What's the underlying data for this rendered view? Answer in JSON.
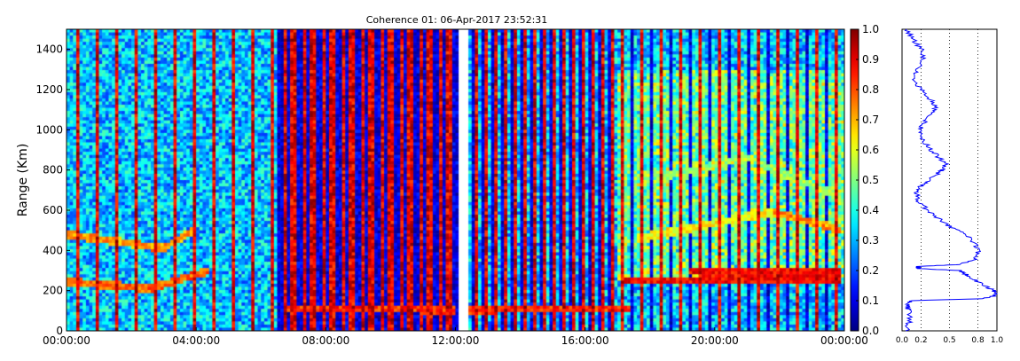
{
  "title": "Coherence 01: 06-Apr-2017 23:52:31",
  "chart_data": [
    {
      "type": "heatmap",
      "title": "Coherence 01: 06-Apr-2017 23:52:31",
      "xlabel": "",
      "ylabel": "Range (Km)",
      "x_tick_labels": [
        "00:00:00",
        "04:00:00",
        "08:00:00",
        "12:00:00",
        "16:00:00",
        "20:00:00",
        "00:00:00"
      ],
      "x_range_hours": [
        0,
        24
      ],
      "y_ticks": [
        0,
        200,
        400,
        600,
        800,
        1000,
        1200,
        1400
      ],
      "ylim": [
        0,
        1500
      ],
      "gap_hours": [
        12.1,
        12.35
      ],
      "colormap": "jet",
      "colorbar": {
        "range": [
          0.0,
          1.0
        ],
        "ticks": [
          "0.0",
          "0.1",
          "0.2",
          "0.3",
          "0.4",
          "0.5",
          "0.6",
          "0.7",
          "0.8",
          "0.9",
          "1.0"
        ]
      },
      "features": [
        {
          "range_start_km": 245,
          "range_end_km": 210,
          "from_h": 0,
          "to_h": 2.6,
          "coherence": 0.85
        },
        {
          "range_start_km": 210,
          "range_end_km": 300,
          "from_h": 2.6,
          "to_h": 4.4,
          "coherence": 0.85
        },
        {
          "range_start_km": 480,
          "range_end_km": 410,
          "from_h": 0,
          "to_h": 3.0,
          "coherence": 0.8
        },
        {
          "range_start_km": 410,
          "range_end_km": 510,
          "from_h": 3.0,
          "to_h": 4.0,
          "coherence": 0.8
        },
        {
          "range_start_km": 110,
          "range_end_km": 105,
          "from_h": 6.8,
          "to_h": 12.0,
          "coherence": 0.9
        },
        {
          "range_start_km": 105,
          "range_end_km": 110,
          "from_h": 12.4,
          "to_h": 17.4,
          "coherence": 0.9
        },
        {
          "range_start_km": 250,
          "range_end_km": 260,
          "from_h": 17.2,
          "to_h": 23.9,
          "coherence": 0.95
        },
        {
          "range_start_km": 300,
          "range_end_km": 290,
          "from_h": 19.2,
          "to_h": 23.9,
          "coherence": 0.95
        },
        {
          "range_start_km": 460,
          "range_end_km": 590,
          "from_h": 17.6,
          "to_h": 21.8,
          "coherence": 0.7
        },
        {
          "range_start_km": 590,
          "range_end_km": 500,
          "from_h": 21.8,
          "to_h": 23.9,
          "coherence": 0.8
        },
        {
          "range_start_km": 760,
          "range_end_km": 860,
          "from_h": 18.2,
          "to_h": 21.0,
          "coherence": 0.6
        },
        {
          "range_start_km": 860,
          "range_end_km": 660,
          "from_h": 21.0,
          "to_h": 23.9,
          "coherence": 0.6
        }
      ]
    },
    {
      "type": "line",
      "xlabel": "",
      "ylabel": "",
      "x_tick_labels": [
        "0.0",
        "0.2",
        "0.5",
        "0.8",
        "1.0"
      ],
      "xlim": [
        0,
        1
      ],
      "ylim": [
        0,
        1500
      ],
      "grid": "vertical dotted",
      "series_color": "#0000ff",
      "profile": [
        [
          0,
          0.05
        ],
        [
          50,
          0.08
        ],
        [
          100,
          0.07
        ],
        [
          130,
          0.05
        ],
        [
          150,
          0.1
        ],
        [
          160,
          0.85
        ],
        [
          175,
          0.98
        ],
        [
          190,
          1.0
        ],
        [
          210,
          0.93
        ],
        [
          240,
          0.82
        ],
        [
          270,
          0.7
        ],
        [
          290,
          0.65
        ],
        [
          300,
          0.6
        ],
        [
          310,
          0.18
        ],
        [
          320,
          0.16
        ],
        [
          330,
          0.6
        ],
        [
          360,
          0.78
        ],
        [
          400,
          0.8
        ],
        [
          440,
          0.76
        ],
        [
          480,
          0.66
        ],
        [
          520,
          0.5
        ],
        [
          560,
          0.38
        ],
        [
          600,
          0.27
        ],
        [
          640,
          0.18
        ],
        [
          680,
          0.15
        ],
        [
          710,
          0.17
        ],
        [
          740,
          0.25
        ],
        [
          780,
          0.37
        ],
        [
          800,
          0.42
        ],
        [
          830,
          0.47
        ],
        [
          870,
          0.37
        ],
        [
          910,
          0.28
        ],
        [
          950,
          0.22
        ],
        [
          1000,
          0.18
        ],
        [
          1040,
          0.24
        ],
        [
          1080,
          0.32
        ],
        [
          1120,
          0.36
        ],
        [
          1160,
          0.28
        ],
        [
          1200,
          0.2
        ],
        [
          1250,
          0.12
        ],
        [
          1300,
          0.15
        ],
        [
          1350,
          0.22
        ],
        [
          1400,
          0.2
        ],
        [
          1450,
          0.12
        ],
        [
          1500,
          0.05
        ]
      ]
    }
  ]
}
